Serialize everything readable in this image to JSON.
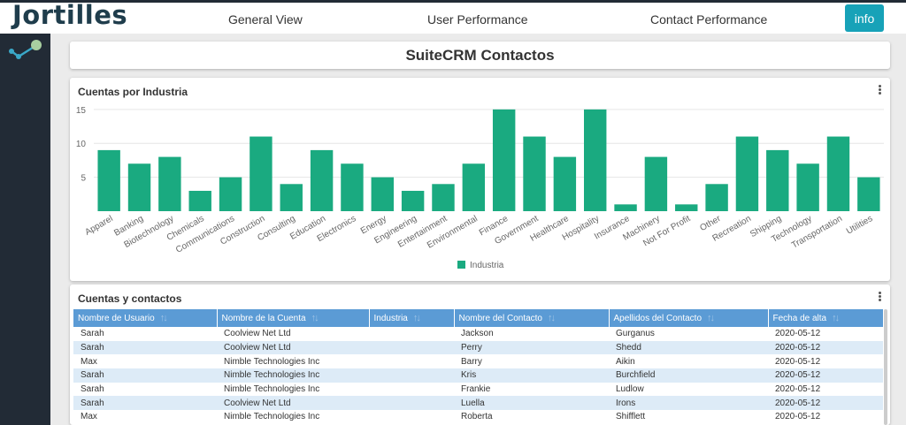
{
  "header": {
    "logo": "Jortilles",
    "nav": [
      "General View",
      "User Performance",
      "Contact Performance"
    ],
    "info_label": "info"
  },
  "page": {
    "title": "SuiteCRM Contactos"
  },
  "chart_card": {
    "title": "Cuentas por Industria"
  },
  "chart_data": {
    "type": "bar",
    "title": "Cuentas por Industria",
    "categories": [
      "Apparel",
      "Banking",
      "Biotechnology",
      "Chemicals",
      "Communications",
      "Construction",
      "Consulting",
      "Education",
      "Electronics",
      "Energy",
      "Engineering",
      "Entertainment",
      "Environmental",
      "Finance",
      "Government",
      "Healthcare",
      "Hospitality",
      "Insurance",
      "Machinery",
      "Not For Profit",
      "Other",
      "Recreation",
      "Shipping",
      "Technology",
      "Transportation",
      "Utilities"
    ],
    "series": [
      {
        "name": "Industria",
        "values": [
          9,
          7,
          8,
          3,
          5,
          11,
          4,
          9,
          7,
          5,
          3,
          4,
          7,
          15,
          11,
          8,
          15,
          1,
          8,
          1,
          4,
          11,
          9,
          7,
          11,
          5
        ]
      }
    ],
    "yticks": [
      5,
      10,
      15
    ],
    "ylim": [
      0,
      15.5
    ],
    "grid": true,
    "legend": "bottom",
    "color": "#1aaa80"
  },
  "table_card": {
    "title": "Cuentas y contactos",
    "columns": [
      "Nombre de Usuario",
      "Nombre de la Cuenta",
      "Industria",
      "Nombre del Contacto",
      "Apellidos del Contacto",
      "Fecha de alta"
    ],
    "rows": [
      [
        "Sarah",
        "Coolview Net Ltd",
        "",
        "Jackson",
        "Gurganus",
        "2020-05-12"
      ],
      [
        "Sarah",
        "Coolview Net Ltd",
        "",
        "Perry",
        "Shedd",
        "2020-05-12"
      ],
      [
        "Max",
        "Nimble Technologies Inc",
        "",
        "Barry",
        "Aikin",
        "2020-05-12"
      ],
      [
        "Sarah",
        "Nimble Technologies Inc",
        "",
        "Kris",
        "Burchfield",
        "2020-05-12"
      ],
      [
        "Sarah",
        "Nimble Technologies Inc",
        "",
        "Frankie",
        "Ludlow",
        "2020-05-12"
      ],
      [
        "Sarah",
        "Coolview Net Ltd",
        "",
        "Luella",
        "Irons",
        "2020-05-12"
      ],
      [
        "Max",
        "Nimble Technologies Inc",
        "",
        "Roberta",
        "Shifflett",
        "2020-05-12"
      ]
    ]
  }
}
